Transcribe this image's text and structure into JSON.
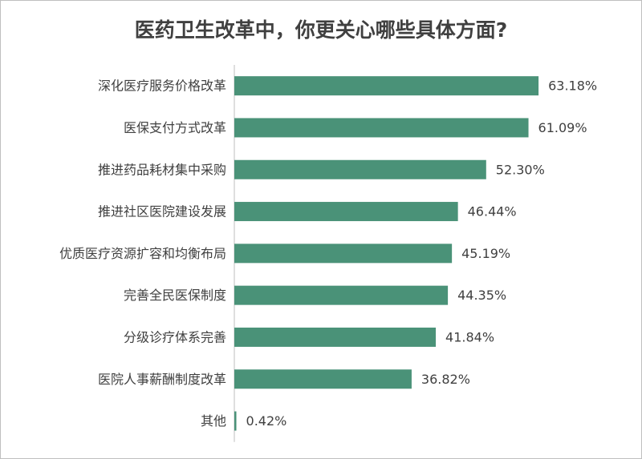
{
  "chart_data": {
    "type": "bar",
    "orientation": "horizontal",
    "title": "医药卫生改革中，你更关心哪些具体方面?",
    "categories": [
      "深化医疗服务价格改革",
      "医保支付方式改革",
      "推进药品耗材集中采购",
      "推进社区医院建设发展",
      "优质医疗资源扩容和均衡布局",
      "完善全民医保制度",
      "分级诊疗体系完善",
      "医院人事薪酬制度改革",
      "其他"
    ],
    "values": [
      63.18,
      61.09,
      52.3,
      46.44,
      45.19,
      44.35,
      41.84,
      36.82,
      0.42
    ],
    "value_labels": [
      "63.18%",
      "61.09%",
      "52.30%",
      "46.44%",
      "45.19%",
      "44.35%",
      "41.84%",
      "36.82%",
      "0.42%"
    ],
    "xlim": [
      0,
      100
    ],
    "grid": false,
    "legend": "none",
    "bar_color": "#4a9278"
  }
}
